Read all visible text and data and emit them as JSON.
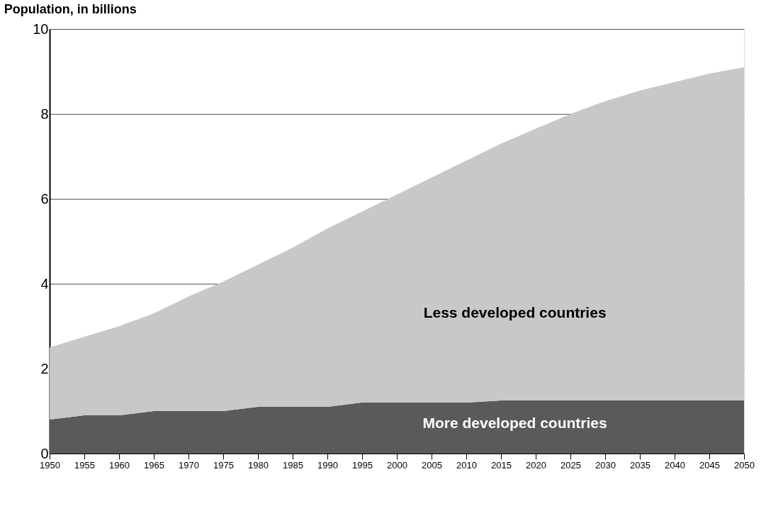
{
  "chart_data": {
    "type": "area",
    "stacked": true,
    "ylabel": "Population, in billions",
    "x": [
      1950,
      1955,
      1960,
      1965,
      1970,
      1975,
      1980,
      1985,
      1990,
      1995,
      2000,
      2005,
      2010,
      2015,
      2020,
      2025,
      2030,
      2035,
      2040,
      2045,
      2050
    ],
    "series": [
      {
        "name": "More developed countries",
        "color": "#5a5a5a",
        "values": [
          0.8,
          0.9,
          0.9,
          1.0,
          1.0,
          1.0,
          1.1,
          1.1,
          1.1,
          1.2,
          1.2,
          1.2,
          1.2,
          1.25,
          1.25,
          1.25,
          1.25,
          1.25,
          1.25,
          1.25,
          1.25
        ]
      },
      {
        "name": "Less developed countries",
        "color": "#c8c8c8",
        "values": [
          1.7,
          1.85,
          2.1,
          2.3,
          2.7,
          3.05,
          3.35,
          3.75,
          4.2,
          4.5,
          4.9,
          5.3,
          5.7,
          6.05,
          6.4,
          6.75,
          7.05,
          7.3,
          7.5,
          7.7,
          7.85
        ]
      }
    ],
    "xlim": [
      1950,
      2050
    ],
    "xticks": [
      1950,
      1955,
      1960,
      1965,
      1970,
      1975,
      1980,
      1985,
      1990,
      1995,
      2000,
      2005,
      2010,
      2015,
      2020,
      2025,
      2030,
      2035,
      2040,
      2045,
      2050
    ],
    "ylim": [
      0,
      10
    ],
    "yticks": [
      0,
      2,
      4,
      6,
      8,
      10
    ],
    "grid": "y",
    "legend": false
  }
}
